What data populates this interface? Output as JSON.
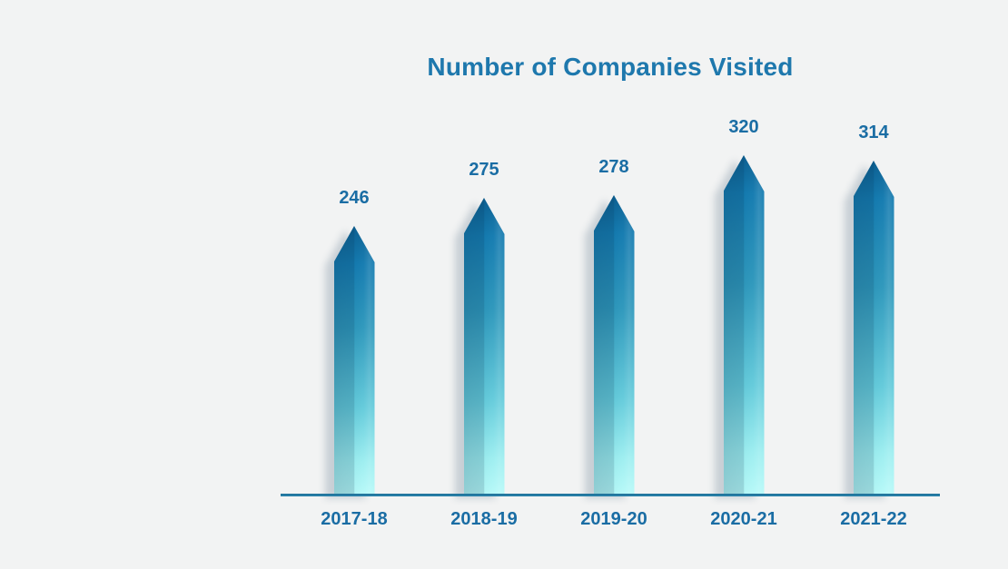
{
  "background_color": "#f2f3f3",
  "chart_data": {
    "type": "bar",
    "title": "Number of Companies Visited",
    "categories": [
      "2017-18",
      "2018-19",
      "2019-20",
      "2020-21",
      "2021-22"
    ],
    "values": [
      246,
      275,
      278,
      320,
      314
    ],
    "value_labels": [
      "246",
      "275",
      "278",
      "320",
      "314"
    ],
    "xlabel": "",
    "ylabel": "",
    "ylim": [
      0,
      340
    ],
    "grid": false,
    "legend_position": "none",
    "bar_shape": "pointed-arrow-top",
    "title_color": "#1e78ad",
    "label_color": "#1a6da4",
    "bar_gradient_top": "#0c6092",
    "bar_gradient_bottom": "#b6f9f8",
    "axis_line_color": "#2380a9"
  }
}
